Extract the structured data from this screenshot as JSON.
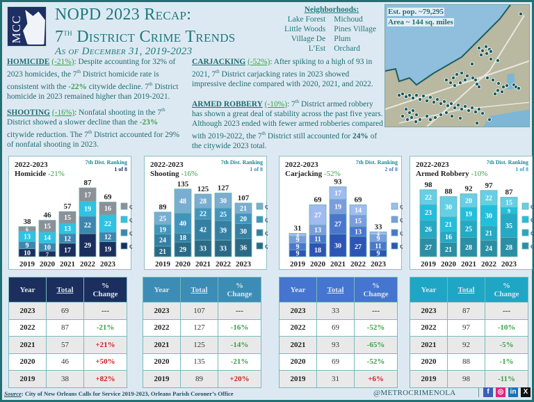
{
  "header": {
    "logo_text": "MCC",
    "title_line1": "NOPD 2023 Recap:",
    "title_line2_pre": "7",
    "title_line2_sup": "th",
    "title_line2_post": " District Crime Trends",
    "subtitle": "As of December 31, 2019-2023"
  },
  "neighborhoods": {
    "heading": "Neighborhoods",
    "left": [
      "Lake Forest",
      "Little Woods",
      "Village De L’Est"
    ],
    "right": [
      "Michoud",
      "Pines Village",
      "Plum Orchard"
    ]
  },
  "map": {
    "population": "Est. pop. ~79,295",
    "area": "Area ~ 144 sq. miles"
  },
  "narrative": {
    "homicide": {
      "head": "HOMICIDE",
      "pct": "(-21%)",
      "t1": ": Despite accounting for 32% of 2023 homicides, the 7",
      "t2": " District homicide rate is consistent with the ",
      "pct2": "-22%",
      "t3": " citywide decline.  7",
      "t4": " District homicide in 2023 remained higher than 2019-2021."
    },
    "shooting": {
      "head": "SHOOTING",
      "pct": "(-16%)",
      "t1": ": Nonfatal shooting in the 7",
      "t2": " District showed a slower decline than the ",
      "pct2": "-23%",
      "t3": " citywide reduction.  The 7",
      "t4": " District accounted for 29% of nonfatal shooting in 2023."
    },
    "carjacking": {
      "head": "CARJACKING",
      "pct": "(-52%)",
      "t1": ": After spiking to a high of 93 in 2021, 7",
      "t2": " District carjacking rates in 2023 showed impressive decline compared with 2020, 2021, and 2022."
    },
    "armed_robbery": {
      "head": "ARMED ROBBERY",
      "pct": "(-10%)",
      "t1": ": 7",
      "t2": " District armed robbery has shown a great deal of stability across the past five years.  Although 2023 ended with fewer armed robberies compared with 2019-2022, the 7",
      "t3": " District still accounted for ",
      "bold": "24%",
      "t4": " of the citywide 2023 total."
    },
    "sup_th": "th"
  },
  "chart_data": [
    {
      "type": "bar",
      "stacked": true,
      "period": "2022-2023",
      "title": "Homicide",
      "change": "-21%",
      "ranking_label": "7th Dist. Ranking",
      "ranking": "1 of 8",
      "categories": [
        "2019",
        "2020",
        "2021",
        "2022",
        "2023"
      ],
      "totals": [
        38,
        46,
        57,
        87,
        69
      ],
      "series": [
        {
          "name": "Q1",
          "values": [
            10,
            7,
            17,
            29,
            19
          ],
          "color": "#1b2f5e"
        },
        {
          "name": "Q2",
          "values": [
            9,
            10,
            12,
            22,
            12
          ],
          "color": "#3d86b0"
        },
        {
          "name": "Q3",
          "values": [
            13,
            14,
            13,
            19,
            22
          ],
          "color": "#2ec3e3"
        },
        {
          "name": "Q4",
          "values": [
            6,
            15,
            15,
            17,
            16
          ],
          "color": "#8b9196"
        }
      ],
      "ylim": [
        0,
        95
      ]
    },
    {
      "type": "bar",
      "stacked": true,
      "period": "2022-2023",
      "title": "Shooting",
      "change": "-16%",
      "ranking_label": "7th Dist. Ranking",
      "ranking": "1 of 8",
      "categories": [
        "2019",
        "2020",
        "2021",
        "2022",
        "2023"
      ],
      "totals": [
        89,
        135,
        125,
        127,
        107
      ],
      "series": [
        {
          "name": "Q1",
          "values": [
            21,
            29,
            33,
            33,
            36
          ],
          "color": "#2b6a86"
        },
        {
          "name": "Q2",
          "values": [
            24,
            18,
            42,
            39,
            30
          ],
          "color": "#357fa3"
        },
        {
          "name": "Q3",
          "values": [
            19,
            40,
            22,
            25,
            20
          ],
          "color": "#4195bd"
        },
        {
          "name": "Q4",
          "values": [
            25,
            48,
            28,
            30,
            21
          ],
          "color": "#79aed0"
        }
      ],
      "ylim": [
        0,
        150
      ]
    },
    {
      "type": "bar",
      "stacked": true,
      "period": "2022-2023",
      "title": "Carjacking",
      "change": "-52%",
      "ranking_label": "7th Dist. Ranking",
      "ranking": "2 of 8",
      "categories": [
        "2019",
        "2020",
        "2021",
        "2022",
        "2023"
      ],
      "totals": [
        31,
        69,
        93,
        69,
        33
      ],
      "series": [
        {
          "name": "Q1",
          "values": [
            9,
            18,
            30,
            27,
            9
          ],
          "color": "#2d55b5"
        },
        {
          "name": "Q2",
          "values": [
            9,
            11,
            27,
            13,
            11
          ],
          "color": "#4a77cc"
        },
        {
          "name": "Q3",
          "values": [
            9,
            13,
            19,
            15,
            9
          ],
          "color": "#7a9ddc"
        },
        {
          "name": "Q4",
          "values": [
            4,
            27,
            17,
            14,
            4
          ],
          "color": "#9fbbef"
        }
      ],
      "ylim": [
        0,
        100
      ]
    },
    {
      "type": "bar",
      "stacked": true,
      "period": "2022-2023",
      "title": "Armed Robbery",
      "change": "-10%",
      "ranking_label": "7th Dist. Ranking",
      "ranking": "1 of 8",
      "categories": [
        "2019",
        "2020",
        "2021",
        "2022",
        "2023"
      ],
      "totals": [
        98,
        88,
        92,
        97,
        87
      ],
      "series": [
        {
          "name": "Q1",
          "values": [
            27,
            21,
            28,
            24,
            28
          ],
          "color": "#2a8fa4"
        },
        {
          "name": "Q2",
          "values": [
            26,
            16,
            25,
            21,
            35
          ],
          "color": "#25a9c4"
        },
        {
          "name": "Q3",
          "values": [
            23,
            21,
            19,
            30,
            9
          ],
          "color": "#21bfdc"
        },
        {
          "name": "Q4",
          "values": [
            22,
            30,
            20,
            22,
            15
          ],
          "color": "#66cfe6"
        }
      ],
      "ylim": [
        0,
        110
      ]
    }
  ],
  "tables": [
    {
      "name": "homicide",
      "header_color": "#1c2e5e",
      "headers": [
        "Year",
        "Total",
        "%\nChange"
      ],
      "rows": [
        {
          "year": "2023",
          "total": "69",
          "change": "---",
          "dir": "dash"
        },
        {
          "year": "2022",
          "total": "87",
          "change": "-21%",
          "dir": "neg"
        },
        {
          "year": "2021",
          "total": "57",
          "change": "+21%",
          "dir": "pos"
        },
        {
          "year": "2020",
          "total": "46",
          "change": "+50%",
          "dir": "pos"
        },
        {
          "year": "2019",
          "total": "38",
          "change": "+82%",
          "dir": "pos"
        }
      ]
    },
    {
      "name": "shooting",
      "header_color": "#3c8db5",
      "headers": [
        "Year",
        "Total",
        "%\nChange"
      ],
      "rows": [
        {
          "year": "2023",
          "total": "107",
          "change": "---",
          "dir": "dash"
        },
        {
          "year": "2022",
          "total": "127",
          "change": "-16%",
          "dir": "neg"
        },
        {
          "year": "2021",
          "total": "125",
          "change": "-14%",
          "dir": "neg"
        },
        {
          "year": "2020",
          "total": "135",
          "change": "-21%",
          "dir": "neg"
        },
        {
          "year": "2019",
          "total": "89",
          "change": "+20%",
          "dir": "pos"
        }
      ]
    },
    {
      "name": "carjacking",
      "header_color": "#4575cf",
      "headers": [
        "Year",
        "Total",
        "%\nChange"
      ],
      "rows": [
        {
          "year": "2023",
          "total": "33",
          "change": "---",
          "dir": "dash"
        },
        {
          "year": "2022",
          "total": "69",
          "change": "-52%",
          "dir": "neg"
        },
        {
          "year": "2021",
          "total": "93",
          "change": "-65%",
          "dir": "neg"
        },
        {
          "year": "2020",
          "total": "69",
          "change": "-52%",
          "dir": "neg"
        },
        {
          "year": "2019",
          "total": "31",
          "change": "+6%",
          "dir": "pos"
        }
      ]
    },
    {
      "name": "armed-robbery",
      "header_color": "#1fa6c4",
      "headers": [
        "Year",
        "Total",
        "%\nChange"
      ],
      "rows": [
        {
          "year": "2023",
          "total": "87",
          "change": "---",
          "dir": "dash"
        },
        {
          "year": "2022",
          "total": "97",
          "change": "-10%",
          "dir": "neg"
        },
        {
          "year": "2021",
          "total": "92",
          "change": "-5%",
          "dir": "neg"
        },
        {
          "year": "2020",
          "total": "88",
          "change": "-1%",
          "dir": "neg"
        },
        {
          "year": "2019",
          "total": "98",
          "change": "-11%",
          "dir": "neg"
        }
      ]
    }
  ],
  "footer": {
    "source_label": "Source",
    "source_text": ": City of New Orleans Calls for Service 2019-2023, Orleans Parish Coroner’s Office",
    "handle": "@METROCRIMENOLA",
    "social": [
      {
        "name": "facebook",
        "glyph": "f",
        "color": "#3b5fb8"
      },
      {
        "name": "instagram",
        "glyph": "◎",
        "color": "#e0267c"
      },
      {
        "name": "linkedin",
        "glyph": "in",
        "color": "#1c72b5"
      },
      {
        "name": "x",
        "glyph": "X",
        "color": "#111111"
      }
    ]
  }
}
